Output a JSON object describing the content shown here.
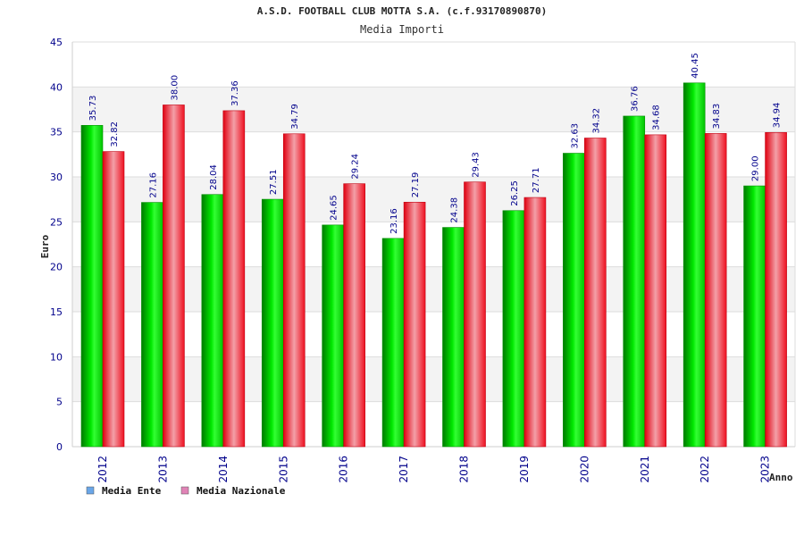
{
  "chart_data": {
    "type": "bar",
    "title": "A.S.D. FOOTBALL CLUB MOTTA S.A. (c.f.93170890870)",
    "subtitle": "Media Importi",
    "xlabel": "Anno",
    "ylabel": "Euro",
    "ylim": [
      0,
      45
    ],
    "yticks": [
      "0",
      "5",
      "10",
      "15",
      "20",
      "25",
      "30",
      "35",
      "40",
      "45"
    ],
    "categories": [
      "2012",
      "2013",
      "2014",
      "2015",
      "2016",
      "2017",
      "2018",
      "2019",
      "2020",
      "2021",
      "2022",
      "2023"
    ],
    "series": [
      {
        "name": "Media Ente",
        "legend_color": "#6aa6e8",
        "bar_color": "#00c000",
        "values": [
          35.73,
          27.16,
          28.04,
          27.51,
          24.65,
          23.16,
          24.38,
          26.25,
          32.63,
          36.76,
          40.45,
          29.0
        ],
        "labels": [
          "35.73",
          "27.16",
          "28.04",
          "27.51",
          "24.65",
          "23.16",
          "24.38",
          "26.25",
          "32.63",
          "36.76",
          "40.45",
          "29.00"
        ]
      },
      {
        "name": "Media Nazionale",
        "legend_color": "#e083b6",
        "bar_color": "#ee1020",
        "values": [
          32.82,
          38.0,
          37.36,
          34.79,
          29.24,
          27.19,
          29.43,
          27.71,
          34.32,
          34.68,
          34.83,
          34.94
        ],
        "labels": [
          "32.82",
          "38.00",
          "37.36",
          "34.79",
          "29.24",
          "27.19",
          "29.43",
          "27.71",
          "34.32",
          "34.68",
          "34.83",
          "34.94"
        ]
      }
    ],
    "grid": true,
    "legend_position": "bottom-left"
  }
}
